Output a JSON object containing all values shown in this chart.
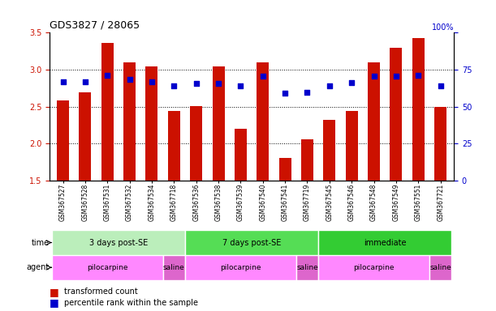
{
  "title": "GDS3827 / 28065",
  "samples": [
    "GSM367527",
    "GSM367528",
    "GSM367531",
    "GSM367532",
    "GSM367534",
    "GSM367718",
    "GSM367536",
    "GSM367538",
    "GSM367539",
    "GSM367540",
    "GSM367541",
    "GSM367719",
    "GSM367545",
    "GSM367546",
    "GSM367548",
    "GSM367549",
    "GSM367551",
    "GSM367721"
  ],
  "bar_values": [
    2.58,
    2.69,
    3.36,
    3.1,
    3.04,
    2.44,
    2.51,
    3.04,
    2.2,
    3.1,
    1.8,
    2.06,
    2.32,
    2.44,
    3.1,
    3.3,
    3.43,
    2.49
  ],
  "dot_values": [
    2.84,
    2.84,
    2.92,
    2.87,
    2.84,
    2.78,
    2.81,
    2.81,
    2.78,
    2.91,
    2.68,
    2.69,
    2.78,
    2.82,
    2.91,
    2.91,
    2.92,
    2.78
  ],
  "bar_bottom": 1.5,
  "ylim": [
    1.5,
    3.5
  ],
  "yticks_left": [
    1.5,
    2.0,
    2.5,
    3.0,
    3.5
  ],
  "yticks_right": [
    0,
    25,
    50,
    75,
    100
  ],
  "bar_color": "#cc1100",
  "dot_color": "#0000cc",
  "grid_color": "#000000",
  "time_groups": [
    {
      "label": "3 days post-SE",
      "start": 0,
      "end": 6,
      "color": "#bbeebb"
    },
    {
      "label": "7 days post-SE",
      "start": 6,
      "end": 12,
      "color": "#55dd55"
    },
    {
      "label": "immediate",
      "start": 12,
      "end": 18,
      "color": "#33cc33"
    }
  ],
  "agent_groups": [
    {
      "label": "pilocarpine",
      "start": 0,
      "end": 5,
      "color": "#ff88ff"
    },
    {
      "label": "saline",
      "start": 5,
      "end": 6,
      "color": "#dd66cc"
    },
    {
      "label": "pilocarpine",
      "start": 6,
      "end": 11,
      "color": "#ff88ff"
    },
    {
      "label": "saline",
      "start": 11,
      "end": 12,
      "color": "#dd66cc"
    },
    {
      "label": "pilocarpine",
      "start": 12,
      "end": 17,
      "color": "#ff88ff"
    },
    {
      "label": "saline",
      "start": 17,
      "end": 18,
      "color": "#dd66cc"
    }
  ],
  "legend_bar_label": "transformed count",
  "legend_dot_label": "percentile rank within the sample",
  "label_time": "time",
  "label_agent": "agent",
  "bg_color": "#ffffff",
  "tick_color_left": "#cc1100",
  "tick_color_right": "#0000cc",
  "n_samples": 18
}
